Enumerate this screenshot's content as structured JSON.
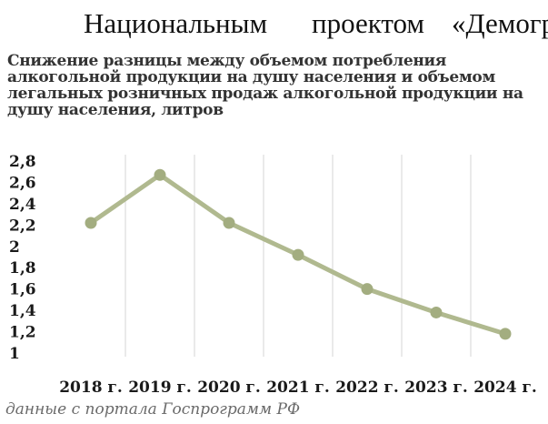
{
  "document": {
    "words": [
      "Национальным",
      "проектом",
      "«Демогр"
    ]
  },
  "chart_data": {
    "type": "line",
    "title": "Снижение разницы между объемом потребления алкогольной продукции на душу населения и объемом легальных розничных продаж алкогольной продукции на душу населения, литров",
    "categories": [
      "2018 г.",
      "2019 г.",
      "2020 г.",
      "2021 г.",
      "2022 г.",
      "2023 г.",
      "2024 г."
    ],
    "values": [
      2.22,
      2.67,
      2.22,
      1.92,
      1.6,
      1.38,
      1.18
    ],
    "ylim": [
      1,
      2.8
    ],
    "yticks": [
      "1",
      "1,2",
      "1,4",
      "1,6",
      "1,8",
      "2",
      "2,2",
      "2,4",
      "2,6",
      "2,8"
    ],
    "grid": "vertical",
    "legend": "none",
    "colors": {
      "line": "#b0b98f",
      "marker": "#a3ad80",
      "grid": "#d4d4d4"
    },
    "source": "данные с портала Госпрограмм РФ"
  }
}
